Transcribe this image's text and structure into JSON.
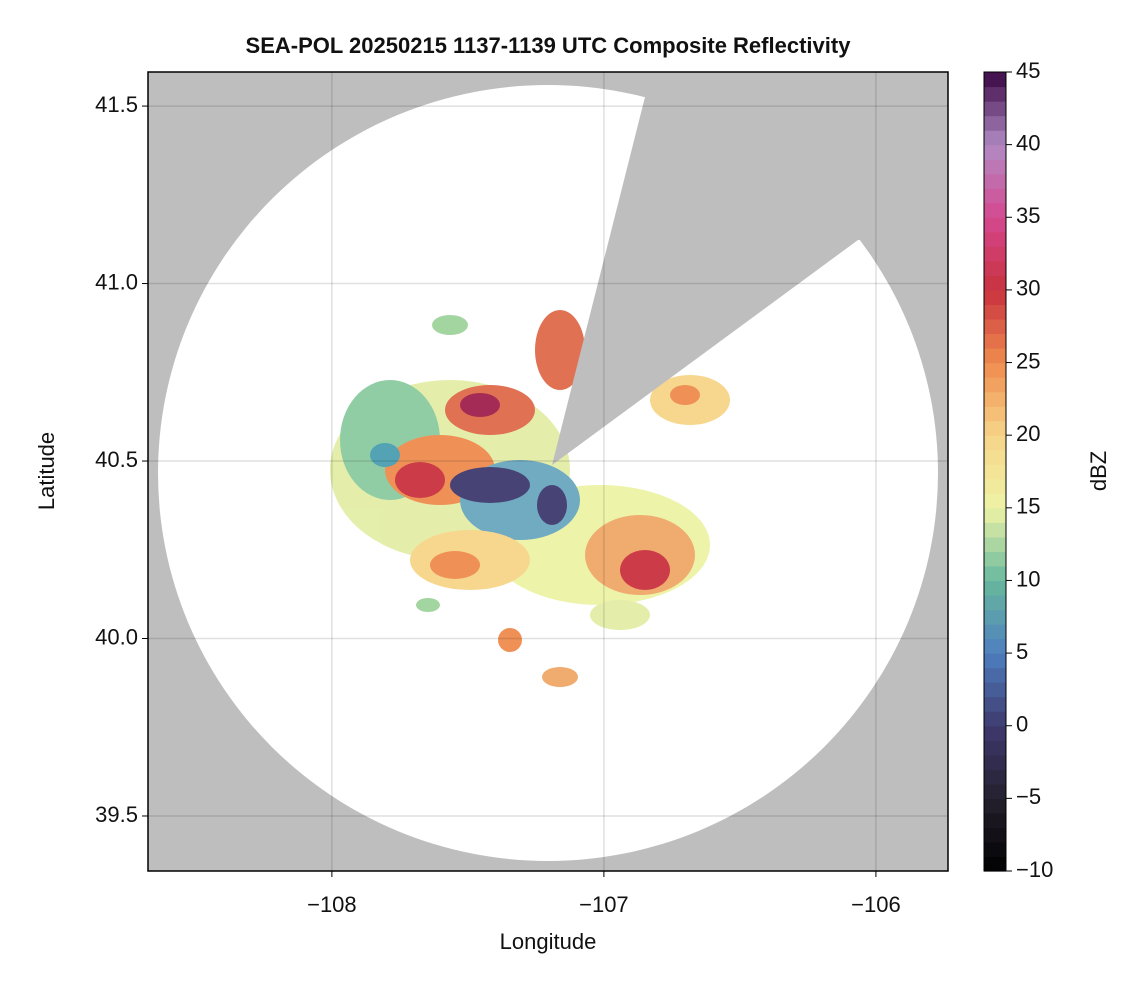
{
  "chart_data": {
    "type": "map",
    "title": "SEA-POL 20250215 1137-1139 UTC Composite Reflectivity",
    "x_label": "Longitude",
    "y_label": "Latitude",
    "xlim": [
      -108.676,
      -105.735
    ],
    "ylim": [
      39.345,
      41.596
    ],
    "xticks": [
      {
        "value": -108,
        "label": "−108"
      },
      {
        "value": -107,
        "label": "−107"
      },
      {
        "value": -106,
        "label": "−106"
      }
    ],
    "yticks": [
      39.5,
      {
        "value": 40,
        "label": "40.0"
      },
      40.5,
      {
        "value": 41,
        "label": "41.0"
      },
      41.5
    ],
    "grid": true,
    "background_color": "#bebebe",
    "colorbar": {
      "label": "dBZ",
      "lim": [
        -10,
        45
      ],
      "ticks": [
        {
          "value": -10,
          "label": "−10"
        },
        {
          "value": -5,
          "label": "−5"
        },
        0,
        5,
        10,
        15,
        20,
        25,
        30,
        35,
        40,
        45
      ],
      "colors": [
        "#000000",
        "#25202d",
        "#3e3a6e",
        "#4f7fbf",
        "#68b89e",
        "#eef3a6",
        "#f7d589",
        "#ef8c4f",
        "#c9323f",
        "#d4488f",
        "#b28bc4",
        "#3a0844"
      ]
    }
  }
}
